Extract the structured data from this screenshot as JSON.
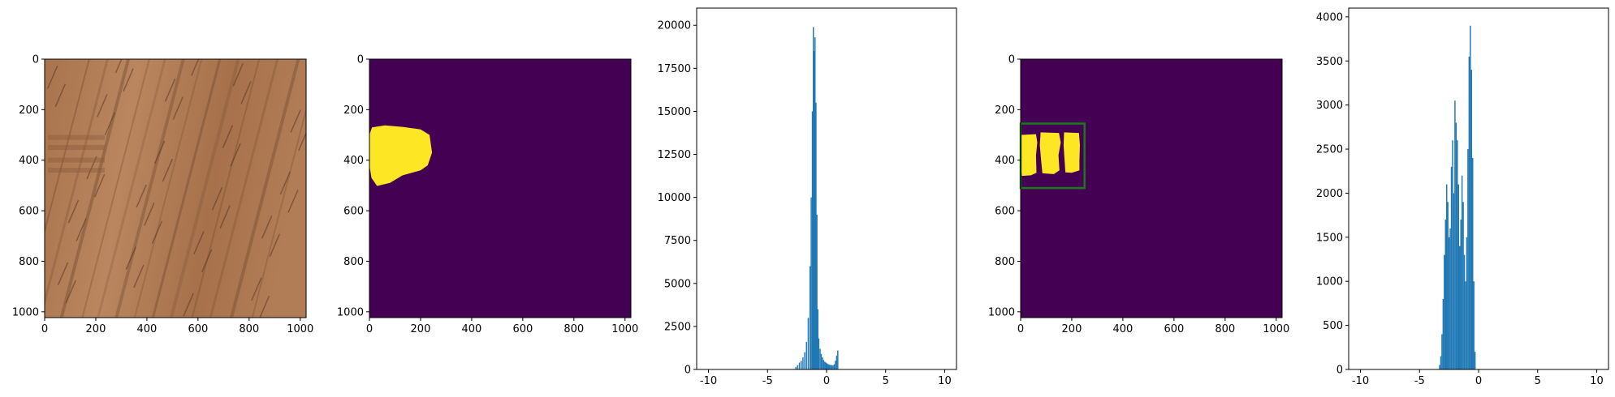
{
  "chart_data": [
    {
      "type": "image",
      "image_content": "wood grain texture photo",
      "xticks": [
        "0",
        "200",
        "400",
        "600",
        "800",
        "1000"
      ],
      "yticks": [
        "0",
        "200",
        "400",
        "600",
        "800",
        "1000"
      ],
      "xlim": [
        0,
        1023
      ],
      "ylim": [
        1023,
        0
      ],
      "colors": {
        "light": "#b07c55",
        "dark": "#7a4f31",
        "grain": "#5a3620"
      }
    },
    {
      "type": "heatmap",
      "image_content": "binary mask",
      "xticks": [
        "0",
        "200",
        "400",
        "600",
        "800",
        "1000"
      ],
      "yticks": [
        "0",
        "200",
        "400",
        "600",
        "800",
        "1000"
      ],
      "xlim": [
        0,
        1023
      ],
      "ylim": [
        1023,
        0
      ],
      "colors": {
        "background": "#440154",
        "foreground": "#fde725"
      },
      "regions": [
        {
          "points": [
            [
              10,
              270
            ],
            [
              60,
              262
            ],
            [
              130,
              268
            ],
            [
              200,
              278
            ],
            [
              235,
              300
            ],
            [
              245,
              370
            ],
            [
              228,
              420
            ],
            [
              200,
              440
            ],
            [
              130,
              460
            ],
            [
              80,
              490
            ],
            [
              30,
              502
            ],
            [
              8,
              470
            ],
            [
              0,
              420
            ],
            [
              0,
              300
            ]
          ]
        }
      ]
    },
    {
      "type": "histogram",
      "xlim": [
        -11,
        11
      ],
      "ylim": [
        0,
        21000
      ],
      "xticks": [
        -10,
        -5,
        0,
        5,
        10
      ],
      "yticks": [
        0,
        2500,
        5000,
        7500,
        10000,
        12500,
        15000,
        17500,
        20000
      ],
      "color": "#1f77b4",
      "bins": [
        {
          "x": -2.6,
          "y": 150
        },
        {
          "x": -2.45,
          "y": 250
        },
        {
          "x": -2.3,
          "y": 400
        },
        {
          "x": -2.15,
          "y": 500
        },
        {
          "x": -2.0,
          "y": 700
        },
        {
          "x": -1.85,
          "y": 1000
        },
        {
          "x": -1.7,
          "y": 1600
        },
        {
          "x": -1.55,
          "y": 3000
        },
        {
          "x": -1.4,
          "y": 6000
        },
        {
          "x": -1.3,
          "y": 10000
        },
        {
          "x": -1.2,
          "y": 15000
        },
        {
          "x": -1.12,
          "y": 19900
        },
        {
          "x": -1.05,
          "y": 18500
        },
        {
          "x": -0.98,
          "y": 19300
        },
        {
          "x": -0.9,
          "y": 15500
        },
        {
          "x": -0.82,
          "y": 9000
        },
        {
          "x": -0.74,
          "y": 3500
        },
        {
          "x": -0.66,
          "y": 1800
        },
        {
          "x": -0.55,
          "y": 1200
        },
        {
          "x": -0.45,
          "y": 900
        },
        {
          "x": -0.35,
          "y": 700
        },
        {
          "x": -0.25,
          "y": 550
        },
        {
          "x": -0.15,
          "y": 450
        },
        {
          "x": -0.05,
          "y": 400
        },
        {
          "x": 0.05,
          "y": 350
        },
        {
          "x": 0.15,
          "y": 300
        },
        {
          "x": 0.25,
          "y": 280
        },
        {
          "x": 0.35,
          "y": 260
        },
        {
          "x": 0.45,
          "y": 250
        },
        {
          "x": 0.55,
          "y": 240
        },
        {
          "x": 0.65,
          "y": 300
        },
        {
          "x": 0.75,
          "y": 500
        },
        {
          "x": 0.85,
          "y": 800
        },
        {
          "x": 0.95,
          "y": 1100
        }
      ],
      "bin_width": 0.1
    },
    {
      "type": "heatmap",
      "image_content": "binary mask with bounding box",
      "xticks": [
        "0",
        "200",
        "400",
        "600",
        "800",
        "1000"
      ],
      "yticks": [
        "0",
        "200",
        "400",
        "600",
        "800",
        "1000"
      ],
      "xlim": [
        0,
        1023
      ],
      "ylim": [
        1023,
        0
      ],
      "colors": {
        "background": "#440154",
        "foreground": "#fde725",
        "box": "#1a7a1a"
      },
      "regions": [
        {
          "points": [
            [
              3,
              300
            ],
            [
              60,
              297
            ],
            [
              65,
              330
            ],
            [
              60,
              380
            ],
            [
              62,
              450
            ],
            [
              40,
              460
            ],
            [
              5,
              462
            ],
            [
              0,
              420
            ],
            [
              0,
              310
            ]
          ]
        },
        {
          "points": [
            [
              78,
              290
            ],
            [
              150,
              292
            ],
            [
              157,
              330
            ],
            [
              148,
              380
            ],
            [
              152,
              440
            ],
            [
              130,
              455
            ],
            [
              85,
              452
            ],
            [
              80,
              400
            ],
            [
              75,
              340
            ]
          ]
        },
        {
          "points": [
            [
              170,
              290
            ],
            [
              228,
              292
            ],
            [
              232,
              340
            ],
            [
              230,
              400
            ],
            [
              230,
              440
            ],
            [
              200,
              450
            ],
            [
              175,
              448
            ],
            [
              172,
              400
            ],
            [
              168,
              340
            ]
          ]
        }
      ],
      "box": {
        "x0": 0,
        "y0": 255,
        "x1": 250,
        "y1": 510
      }
    },
    {
      "type": "histogram",
      "xlim": [
        -11,
        11
      ],
      "ylim": [
        0,
        4100
      ],
      "xticks": [
        -10,
        -5,
        0,
        5,
        10
      ],
      "yticks": [
        0,
        500,
        1000,
        1500,
        2000,
        2500,
        3000,
        3500,
        4000
      ],
      "color": "#1f77b4",
      "bins": [
        {
          "x": -3.3,
          "y": 50
        },
        {
          "x": -3.2,
          "y": 150
        },
        {
          "x": -3.1,
          "y": 400
        },
        {
          "x": -3.0,
          "y": 800
        },
        {
          "x": -2.9,
          "y": 1300
        },
        {
          "x": -2.8,
          "y": 1700
        },
        {
          "x": -2.7,
          "y": 2100
        },
        {
          "x": -2.6,
          "y": 1900
        },
        {
          "x": -2.5,
          "y": 1500
        },
        {
          "x": -2.4,
          "y": 1600
        },
        {
          "x": -2.3,
          "y": 2300
        },
        {
          "x": -2.2,
          "y": 2600
        },
        {
          "x": -2.1,
          "y": 2000
        },
        {
          "x": -2.0,
          "y": 3050
        },
        {
          "x": -1.9,
          "y": 2800
        },
        {
          "x": -1.8,
          "y": 2600
        },
        {
          "x": -1.7,
          "y": 2100
        },
        {
          "x": -1.6,
          "y": 1400
        },
        {
          "x": -1.5,
          "y": 1700
        },
        {
          "x": -1.4,
          "y": 2200
        },
        {
          "x": -1.3,
          "y": 1900
        },
        {
          "x": -1.2,
          "y": 1300
        },
        {
          "x": -1.1,
          "y": 1000
        },
        {
          "x": -1.0,
          "y": 1500
        },
        {
          "x": -0.9,
          "y": 2500
        },
        {
          "x": -0.8,
          "y": 3550
        },
        {
          "x": -0.7,
          "y": 3900
        },
        {
          "x": -0.6,
          "y": 3400
        },
        {
          "x": -0.5,
          "y": 2400
        },
        {
          "x": -0.4,
          "y": 1000
        },
        {
          "x": -0.3,
          "y": 200
        }
      ],
      "bin_width": 0.1
    }
  ]
}
